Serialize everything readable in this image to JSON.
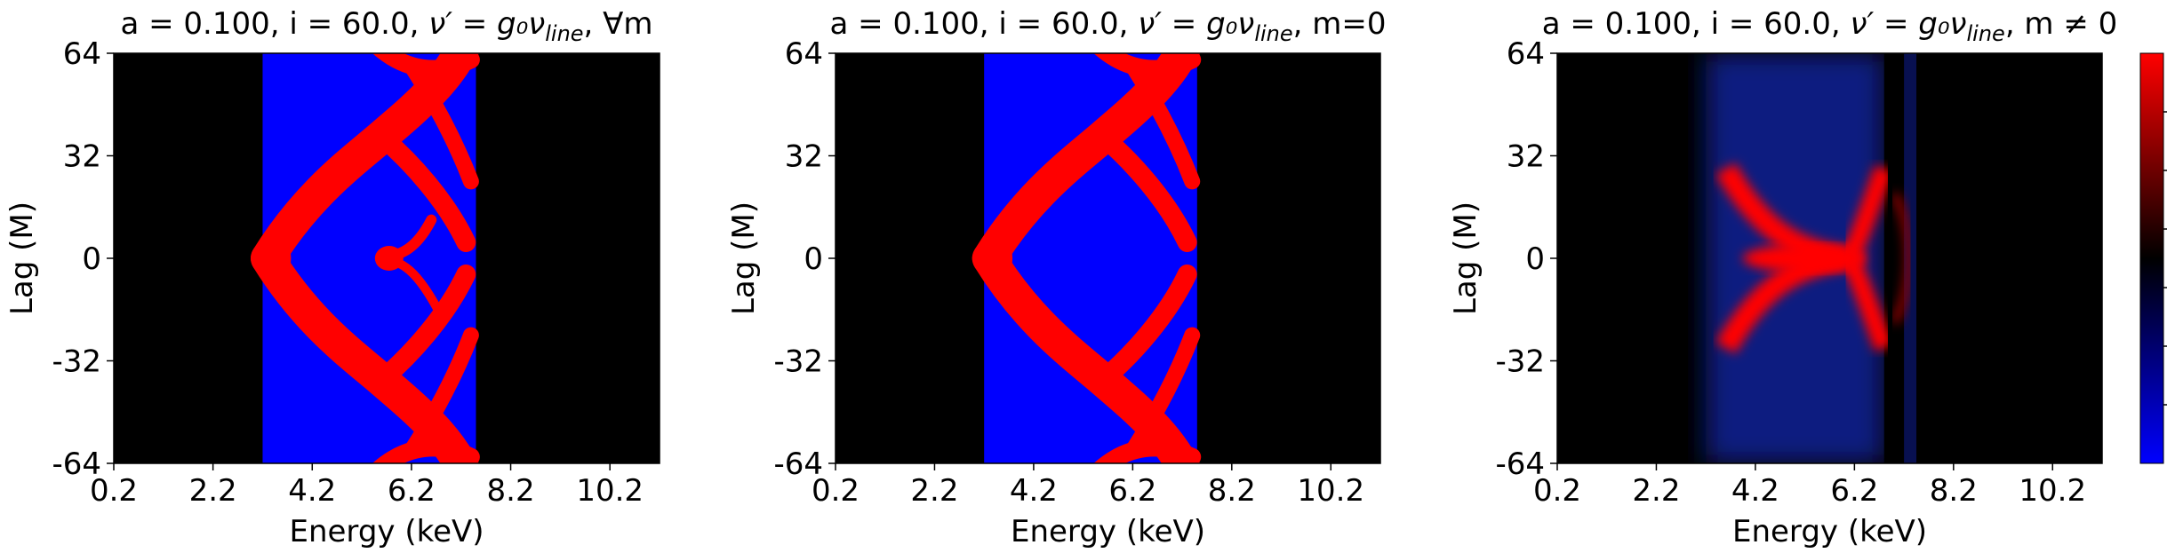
{
  "chart_data": [
    {
      "type": "heatmap",
      "title_text": "a = 0.100, i = 60.0, ",
      "title_math": "ν′ = g₀ν",
      "title_sub": "line",
      "title_tail": ", ∀m",
      "xlabel": "Energy (keV)",
      "ylabel": "Lag (M)",
      "xlim": [
        0.2,
        11.2
      ],
      "ylim": [
        -64,
        64
      ],
      "xticks": [
        "0.2",
        "2.2",
        "4.2",
        "6.2",
        "8.2",
        "10.2"
      ],
      "yticks": [
        "64",
        "32",
        "0",
        "-32",
        "-64"
      ],
      "colormap": [
        "#0000ff",
        "#000000",
        "#ff0000"
      ],
      "band_energy_range_keV": [
        3.2,
        7.5
      ]
    },
    {
      "type": "heatmap",
      "title_text": "a = 0.100, i = 60.0, ",
      "title_math": "ν′ = g₀ν",
      "title_sub": "line",
      "title_tail": ", m=0",
      "xlabel": "Energy (keV)",
      "ylabel": "Lag (M)",
      "xlim": [
        0.2,
        11.2
      ],
      "ylim": [
        -64,
        64
      ],
      "xticks": [
        "0.2",
        "2.2",
        "4.2",
        "6.2",
        "8.2",
        "10.2"
      ],
      "yticks": [
        "64",
        "32",
        "0",
        "-32",
        "-64"
      ],
      "colormap": [
        "#0000ff",
        "#000000",
        "#ff0000"
      ],
      "band_energy_range_keV": [
        3.2,
        7.5
      ]
    },
    {
      "type": "heatmap",
      "title_text": "a = 0.100, i = 60.0, ",
      "title_math": "ν′ = g₀ν",
      "title_sub": "line",
      "title_tail": ", m ≠ 0",
      "xlabel": "Energy (keV)",
      "ylabel": "Lag (M)",
      "xlim": [
        0.2,
        11.2
      ],
      "ylim": [
        -64,
        64
      ],
      "xticks": [
        "0.2",
        "2.2",
        "4.2",
        "6.2",
        "8.2",
        "10.2"
      ],
      "yticks": [
        "64",
        "32",
        "0",
        "-32",
        "-64"
      ],
      "colormap": [
        "#0000ff",
        "#000000",
        "#ff0000"
      ],
      "band_energy_range_keV": [
        3.2,
        7.5
      ]
    }
  ]
}
